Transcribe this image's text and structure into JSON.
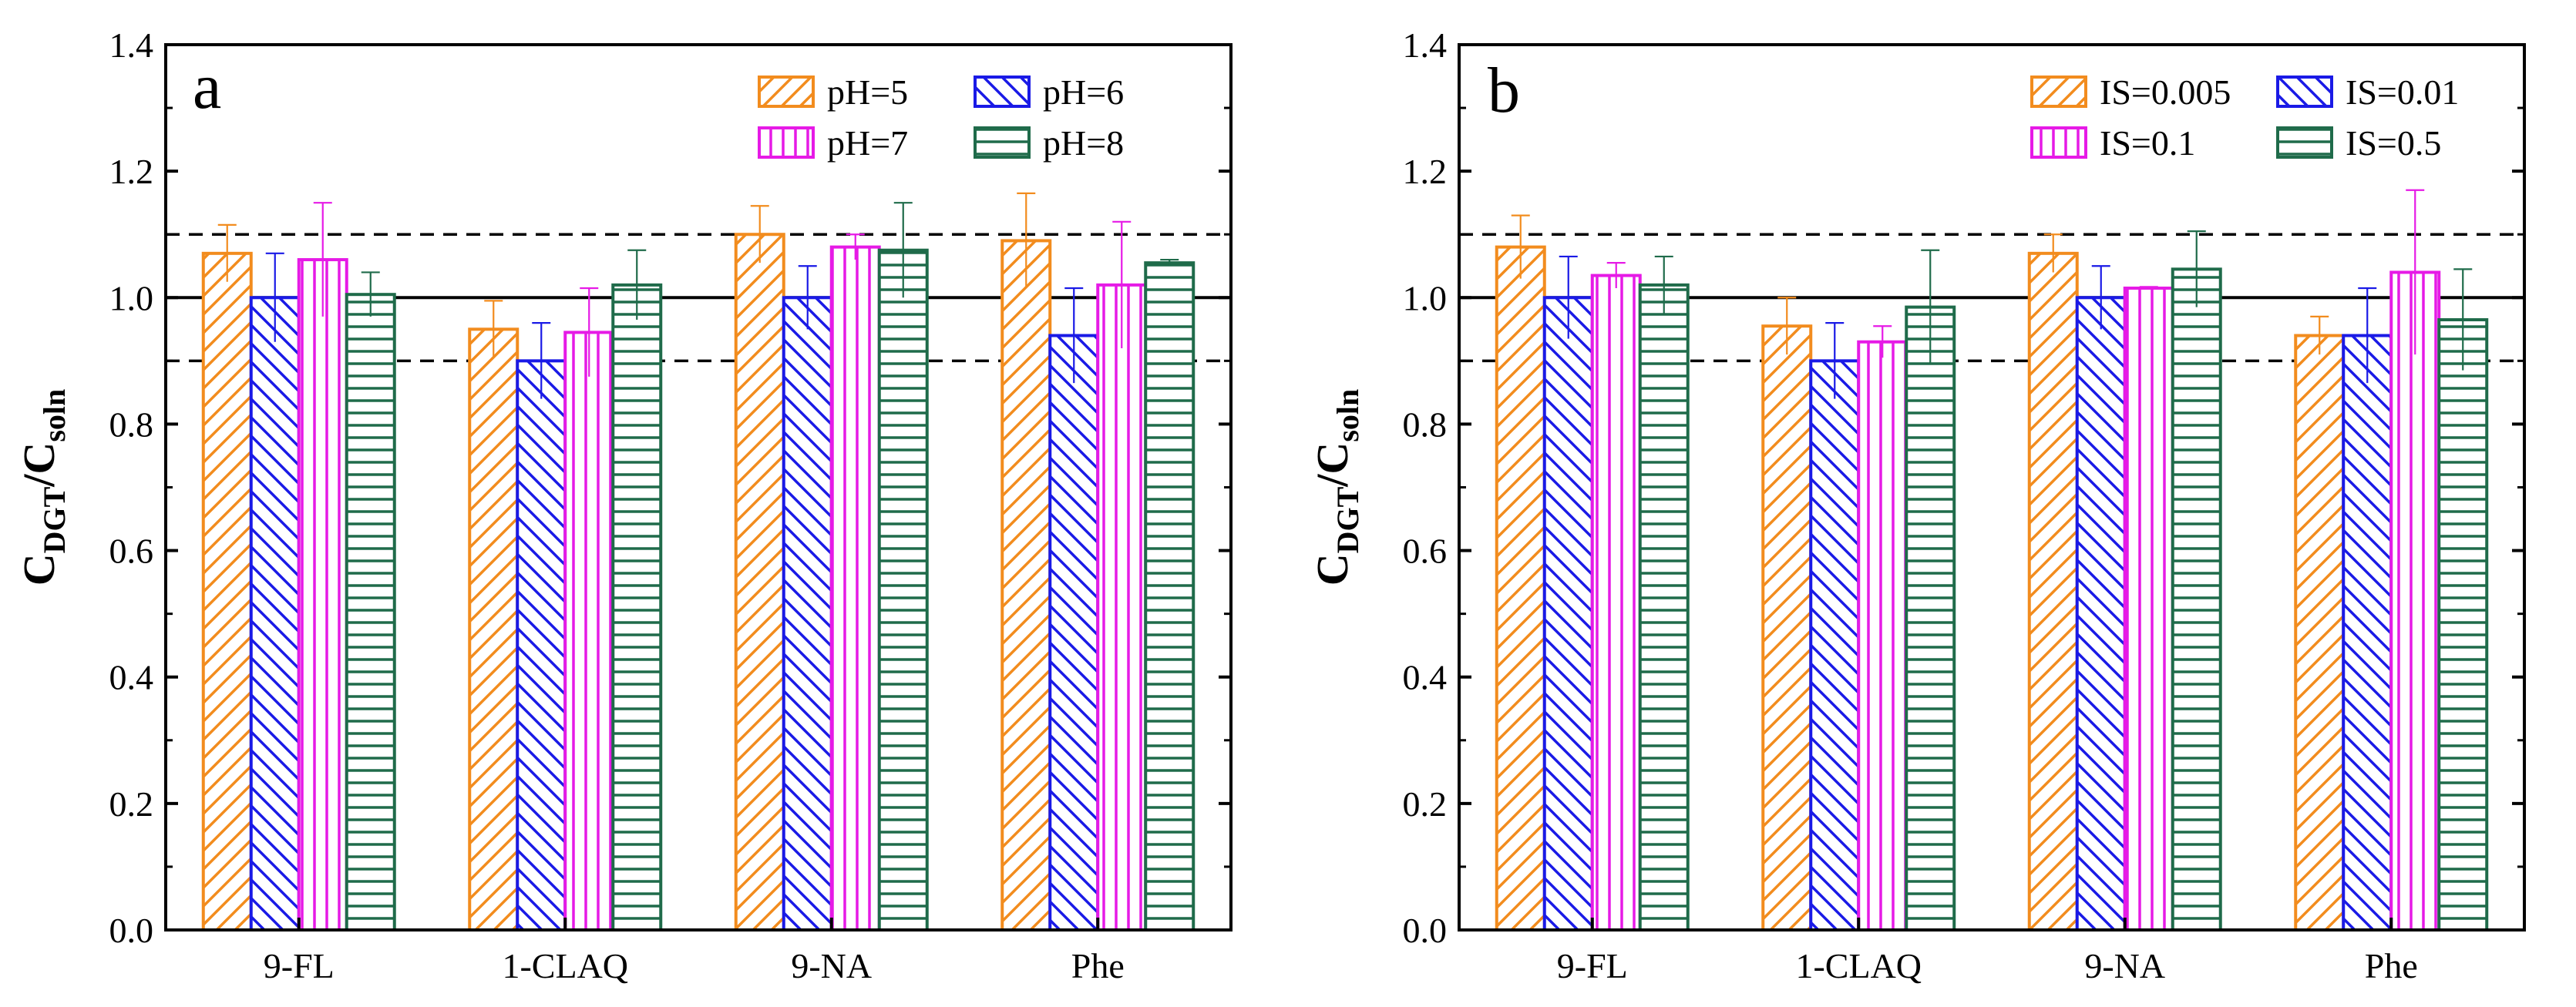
{
  "chart_data": [
    {
      "type": "bar",
      "panel_label": "a",
      "ylabel": {
        "main1": "C",
        "sub1": "DGT",
        "slash": "/",
        "main2": "C",
        "sub2": "soln"
      },
      "xlabel": "",
      "ylim": [
        0,
        1.4
      ],
      "yticks": [
        "0.0",
        "0.2",
        "0.4",
        "0.6",
        "0.8",
        "1.0",
        "1.2",
        "1.4"
      ],
      "categories": [
        "9-FL",
        "1-CLAQ",
        "9-NA",
        "Phe"
      ],
      "reference_lines": {
        "solid": [
          1.0
        ],
        "dashed": [
          0.9,
          1.1
        ]
      },
      "legend_position": "top-right",
      "series": [
        {
          "name": "pH=5",
          "color": "#F28C1E",
          "pattern": "diag-up",
          "values": [
            1.07,
            0.95,
            1.1,
            1.09
          ],
          "errors": [
            0.045,
            0.045,
            0.045,
            0.075
          ]
        },
        {
          "name": "pH=6",
          "color": "#1A1AE6",
          "pattern": "diag-down",
          "values": [
            1.0,
            0.9,
            1.0,
            0.94
          ],
          "errors": [
            0.07,
            0.06,
            0.05,
            0.075
          ]
        },
        {
          "name": "pH=7",
          "color": "#E61AE6",
          "pattern": "vertical",
          "values": [
            1.06,
            0.945,
            1.08,
            1.02
          ],
          "errors": [
            0.09,
            0.07,
            0.02,
            0.1
          ]
        },
        {
          "name": "pH=8",
          "color": "#1F6B4A",
          "pattern": "horizontal",
          "values": [
            1.005,
            1.02,
            1.075,
            1.055
          ],
          "errors": [
            0.035,
            0.055,
            0.075,
            0.005
          ]
        }
      ]
    },
    {
      "type": "bar",
      "panel_label": "b",
      "ylabel": {
        "main1": "C",
        "sub1": "DGT",
        "slash": "/",
        "main2": "C",
        "sub2": "soln"
      },
      "xlabel": "",
      "ylim": [
        0,
        1.4
      ],
      "yticks": [
        "0.0",
        "0.2",
        "0.4",
        "0.6",
        "0.8",
        "1.0",
        "1.2",
        "1.4"
      ],
      "categories": [
        "9-FL",
        "1-CLAQ",
        "9-NA",
        "Phe"
      ],
      "reference_lines": {
        "solid": [
          1.0
        ],
        "dashed": [
          0.9,
          1.1
        ]
      },
      "legend_position": "top-right",
      "series": [
        {
          "name": "IS=0.005",
          "color": "#F28C1E",
          "pattern": "diag-up",
          "values": [
            1.08,
            0.955,
            1.07,
            0.94
          ],
          "errors": [
            0.05,
            0.045,
            0.03,
            0.03
          ]
        },
        {
          "name": "IS=0.01",
          "color": "#1A1AE6",
          "pattern": "diag-down",
          "values": [
            1.0,
            0.9,
            1.0,
            0.94
          ],
          "errors": [
            0.065,
            0.06,
            0.05,
            0.075
          ]
        },
        {
          "name": "IS=0.1",
          "color": "#E61AE6",
          "pattern": "vertical",
          "values": [
            1.035,
            0.93,
            1.015,
            1.04
          ],
          "errors": [
            0.02,
            0.025,
            0.002,
            0.13
          ]
        },
        {
          "name": "IS=0.5",
          "color": "#1F6B4A",
          "pattern": "horizontal",
          "values": [
            1.02,
            0.985,
            1.045,
            0.965
          ],
          "errors": [
            0.045,
            0.09,
            0.06,
            0.08
          ]
        }
      ]
    }
  ]
}
